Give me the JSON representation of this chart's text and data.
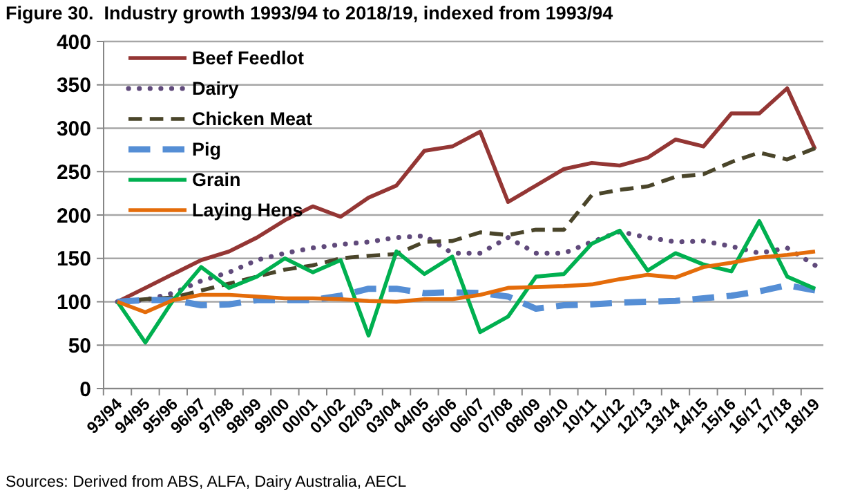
{
  "chart_data": {
    "type": "line",
    "title": "Figure 30.  Industry growth 1993/94 to 2018/19, indexed from 1993/94",
    "categories": [
      "93/94",
      "94/95",
      "95/96",
      "96/97",
      "97/98",
      "98/99",
      "99/00",
      "00/01",
      "01/02",
      "02/03",
      "03/04",
      "04/05",
      "05/06",
      "06/07",
      "07/08",
      "08/09",
      "09/10",
      "10/11",
      "11/12",
      "12/13",
      "13/14",
      "14/15",
      "15/16",
      "16/17",
      "17/18",
      "18/19"
    ],
    "series": [
      {
        "name": "Beef Feedlot",
        "color": "#943634",
        "line_style": "solid",
        "values": [
          100,
          116,
          132,
          148,
          158,
          174,
          194,
          210,
          198,
          220,
          234,
          274,
          279,
          296,
          215,
          234,
          253,
          260,
          257,
          266,
          287,
          279,
          317,
          317,
          346,
          276
        ]
      },
      {
        "name": "Dairy",
        "color": "#604a7b",
        "line_style": "dotted",
        "values": [
          100,
          102,
          110,
          124,
          134,
          148,
          156,
          162,
          166,
          169,
          174,
          176,
          156,
          156,
          174,
          156,
          156,
          169,
          181,
          174,
          169,
          170,
          164,
          156,
          162,
          142
        ]
      },
      {
        "name": "Chicken Meat",
        "color": "#4a452a",
        "line_style": "dashed",
        "values": [
          100,
          103,
          105,
          113,
          121,
          129,
          137,
          142,
          150,
          153,
          155,
          169,
          170,
          180,
          177,
          183,
          183,
          223,
          229,
          233,
          244,
          247,
          261,
          272,
          264,
          277
        ]
      },
      {
        "name": "Pig",
        "color": "#558ed5",
        "line_style": "dashed",
        "values": [
          100,
          102,
          102,
          96,
          97,
          102,
          102,
          102,
          107,
          115,
          115,
          110,
          111,
          110,
          106,
          92,
          96,
          97,
          99,
          100,
          101,
          104,
          107,
          112,
          119,
          113
        ]
      },
      {
        "name": "Grain",
        "color": "#00b050",
        "line_style": "solid",
        "values": [
          100,
          53,
          102,
          140,
          116,
          129,
          150,
          134,
          148,
          61,
          158,
          132,
          152,
          65,
          83,
          129,
          132,
          167,
          182,
          136,
          156,
          143,
          135,
          193,
          129,
          115
        ]
      },
      {
        "name": "Laying Hens",
        "color": "#e46c0a",
        "line_style": "solid",
        "values": [
          100,
          88,
          102,
          108,
          108,
          106,
          104,
          104,
          103,
          101,
          100,
          103,
          103,
          108,
          116,
          117,
          118,
          120,
          126,
          131,
          128,
          140,
          145,
          151,
          154,
          158
        ]
      }
    ],
    "ylim": [
      0,
      400
    ],
    "yticks": [
      0,
      50,
      100,
      150,
      200,
      250,
      300,
      350,
      400
    ],
    "grid": "y",
    "legend": "top left",
    "marker": "none",
    "annotations": [
      "Sources: Derived from ABS, ALFA, Dairy Australia, AECL"
    ]
  }
}
